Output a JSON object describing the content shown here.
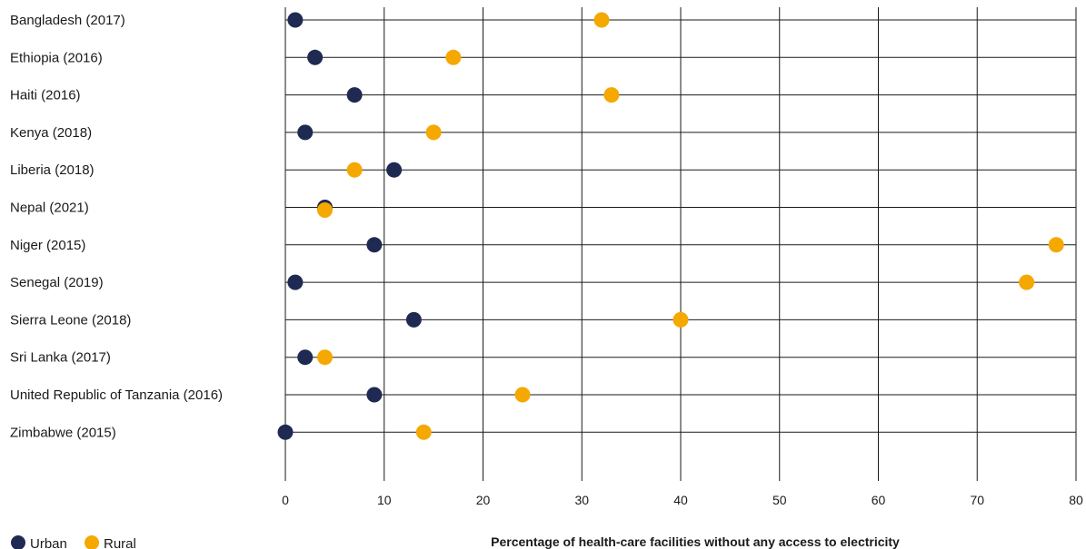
{
  "chart_data": {
    "type": "scatter",
    "categories": [
      "Bangladesh (2017)",
      "Ethiopia (2016)",
      "Haiti (2016)",
      "Kenya (2018)",
      "Liberia (2018)",
      "Nepal (2021)",
      "Niger (2015)",
      "Senegal (2019)",
      "Sierra Leone (2018)",
      "Sri Lanka (2017)",
      "United Republic of Tanzania (2016)",
      "Zimbabwe (2015)"
    ],
    "series": [
      {
        "name": "Urban",
        "color": "#1f2a52",
        "values": [
          1,
          3,
          7,
          2,
          11,
          4,
          9,
          1,
          13,
          2,
          9,
          0
        ]
      },
      {
        "name": "Rural",
        "color": "#f5a800",
        "values": [
          32,
          17,
          33,
          15,
          7,
          4,
          78,
          75,
          40,
          4,
          24,
          14
        ]
      }
    ],
    "xlabel": "Percentage of health-care facilities without any access to electricity",
    "xlim": [
      0,
      80
    ],
    "xticks": [
      "0",
      "10",
      "20",
      "30",
      "40",
      "50",
      "60",
      "70",
      "80"
    ],
    "grid": "both",
    "legend_position": "bottom-left"
  }
}
